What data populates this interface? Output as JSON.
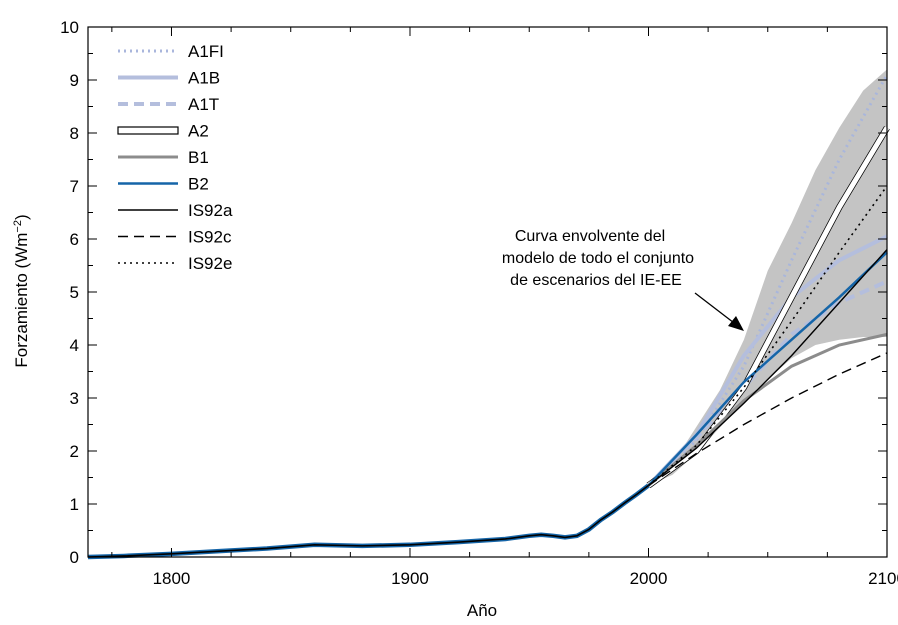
{
  "chart_data": {
    "type": "line",
    "xlabel": "Año",
    "ylabel": "Forzamiento (Wm",
    "ylabel_sup": "−2",
    "ylabel_end": ")",
    "xlim": [
      1765,
      2100
    ],
    "ylim": [
      0,
      10
    ],
    "xticks": [
      1800,
      1900,
      2000,
      2100
    ],
    "yticks": [
      0,
      1,
      2,
      3,
      4,
      5,
      6,
      7,
      8,
      9,
      10
    ],
    "grid": false,
    "legend_position": "top-left",
    "annotation": [
      "Curva envolvente del",
      "modelo de todo el conjunto",
      "de escenarios del IE-EE"
    ],
    "envelope": {
      "color": "#c4c4c4",
      "x": [
        2000,
        2010,
        2020,
        2030,
        2040,
        2050,
        2060,
        2070,
        2080,
        2090,
        2100
      ],
      "upper": [
        1.35,
        1.75,
        2.45,
        3.15,
        4.1,
        5.4,
        6.3,
        7.3,
        8.1,
        8.8,
        9.2
      ],
      "lower": [
        1.35,
        1.55,
        1.95,
        2.45,
        2.95,
        3.35,
        3.75,
        4.0,
        4.1,
        4.15,
        4.15
      ]
    },
    "historical": {
      "x": [
        1765,
        1780,
        1800,
        1820,
        1840,
        1860,
        1880,
        1900,
        1920,
        1940,
        1950,
        1955,
        1960,
        1965,
        1970,
        1975,
        1980,
        1985,
        1990,
        1995,
        2000
      ],
      "y": [
        0.0,
        0.02,
        0.06,
        0.11,
        0.16,
        0.23,
        0.21,
        0.23,
        0.28,
        0.34,
        0.4,
        0.42,
        0.4,
        0.37,
        0.4,
        0.52,
        0.7,
        0.85,
        1.02,
        1.18,
        1.35
      ]
    },
    "series": [
      {
        "name": "A1FI",
        "color": "#a9b6dc",
        "dash": "dotted",
        "width": 3,
        "x": [
          2000,
          2020,
          2040,
          2060,
          2080,
          2100
        ],
        "y": [
          1.35,
          2.2,
          3.6,
          5.6,
          7.5,
          9.1
        ]
      },
      {
        "name": "A1B",
        "color": "#b4bedd",
        "dash": "solid",
        "width": 4,
        "x": [
          2000,
          2020,
          2040,
          2060,
          2080,
          2100
        ],
        "y": [
          1.35,
          2.3,
          3.8,
          4.9,
          5.6,
          6.05
        ]
      },
      {
        "name": "A1T",
        "color": "#b4bedd",
        "dash": "dashed",
        "width": 4,
        "x": [
          2000,
          2020,
          2040,
          2060,
          2080,
          2100
        ],
        "y": [
          1.35,
          2.25,
          3.2,
          4.2,
          4.8,
          5.2
        ]
      },
      {
        "name": "A2",
        "color": "#ffffff",
        "outline": "#000000",
        "dash": "solid",
        "width": 5,
        "x": [
          2000,
          2020,
          2040,
          2060,
          2080,
          2100
        ],
        "y": [
          1.35,
          2.0,
          3.2,
          4.9,
          6.6,
          8.1
        ]
      },
      {
        "name": "B1",
        "color": "#8c8c8c",
        "dash": "solid",
        "width": 3,
        "x": [
          2000,
          2020,
          2040,
          2060,
          2080,
          2100
        ],
        "y": [
          1.35,
          2.1,
          2.95,
          3.6,
          4.0,
          4.2
        ]
      },
      {
        "name": "B2",
        "color": "#1565a8",
        "dash": "solid",
        "width": 2.5,
        "x": [
          2000,
          2020,
          2040,
          2060,
          2080,
          2100
        ],
        "y": [
          1.35,
          2.3,
          3.3,
          4.1,
          4.9,
          5.75
        ]
      },
      {
        "name": "IS92a",
        "color": "#000000",
        "dash": "solid",
        "width": 1.4,
        "x": [
          2000,
          2020,
          2040,
          2060,
          2080,
          2100
        ],
        "y": [
          1.35,
          2.05,
          2.9,
          3.8,
          4.8,
          5.8
        ]
      },
      {
        "name": "IS92c",
        "color": "#000000",
        "dash": "dashed",
        "width": 1.4,
        "x": [
          2000,
          2020,
          2040,
          2060,
          2080,
          2100
        ],
        "y": [
          1.35,
          1.95,
          2.5,
          3.0,
          3.45,
          3.85
        ]
      },
      {
        "name": "IS92e",
        "color": "#000000",
        "dash": "dotted",
        "width": 1.6,
        "x": [
          2000,
          2020,
          2040,
          2060,
          2080,
          2100
        ],
        "y": [
          1.35,
          2.1,
          3.2,
          4.45,
          5.75,
          7.0
        ]
      }
    ]
  }
}
